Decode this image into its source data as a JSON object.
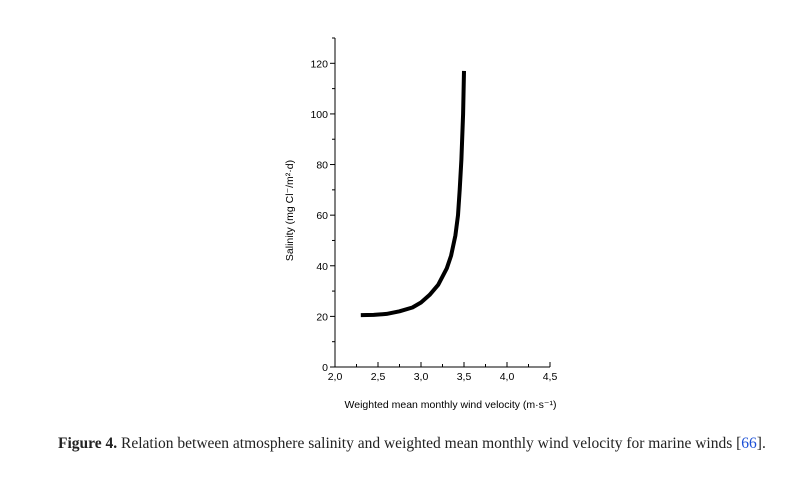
{
  "chart_data": {
    "type": "line",
    "xlabel": "Weighted mean monthly wind velocity (m·s⁻¹)",
    "ylabel": "Salinity (mg Cl⁻/m²·d)",
    "xlim": [
      2.0,
      4.5
    ],
    "ylim": [
      0,
      130
    ],
    "x_ticks": [
      2.0,
      2.5,
      3.0,
      3.5,
      4.0,
      4.5
    ],
    "x_tick_labels": [
      "2,0",
      "2,5",
      "3,0",
      "3,5",
      "4,0",
      "4,5"
    ],
    "y_ticks": [
      0,
      20,
      40,
      60,
      80,
      100,
      120
    ],
    "y_tick_labels": [
      "0",
      "20",
      "40",
      "60",
      "80",
      "100",
      "120"
    ],
    "grid": false,
    "series": [
      {
        "x": [
          2.3,
          2.45,
          2.6,
          2.75,
          2.9,
          3.0,
          3.1,
          3.2,
          3.3,
          3.35,
          3.4,
          3.43,
          3.45,
          3.47,
          3.49,
          3.5
        ],
        "y": [
          20.5,
          20.6,
          21.0,
          22.0,
          23.5,
          25.5,
          28.5,
          32.5,
          39.0,
          44.0,
          52.0,
          60.0,
          70.0,
          82.0,
          100.0,
          117.0
        ],
        "color": "#000000"
      }
    ]
  },
  "caption": {
    "label": "Figure 4.",
    "text": " Relation between atmosphere salinity and weighted mean monthly wind velocity for marine winds [",
    "ref": "66",
    "end": "]."
  }
}
